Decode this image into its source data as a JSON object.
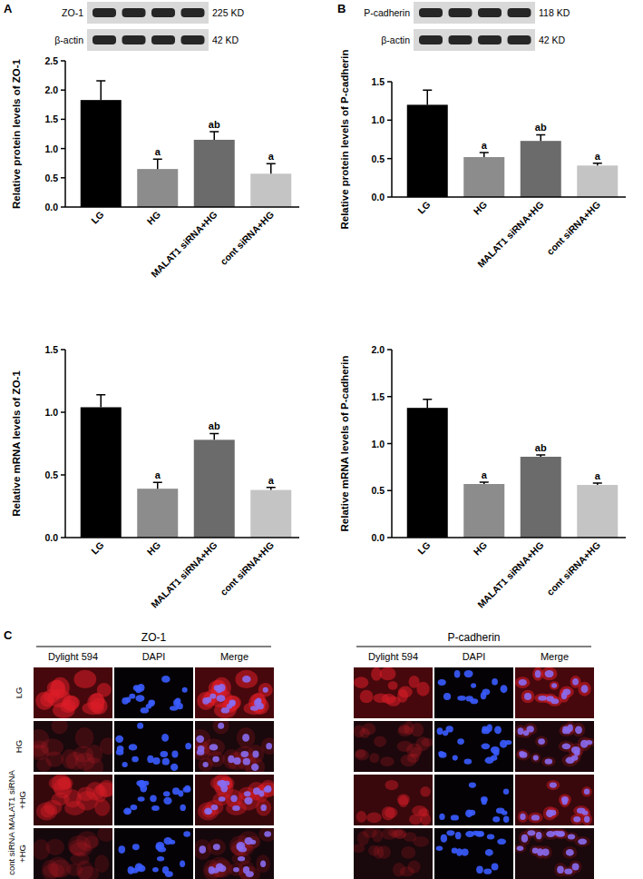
{
  "panel_labels": [
    "A",
    "B",
    "C"
  ],
  "blots": [
    {
      "rows": [
        {
          "label": "ZO-1",
          "size": "225 KD"
        },
        {
          "label": "β-actin",
          "size": "42 KD"
        }
      ]
    },
    {
      "rows": [
        {
          "label": "P-cadherin",
          "size": "118 KD"
        },
        {
          "label": "β-actin",
          "size": "42 KD"
        }
      ]
    }
  ],
  "chart_data": [
    {
      "type": "bar",
      "ylabel": "Relative protein levels of ZO-1",
      "categories": [
        "LG",
        "HG",
        "MALAT1 siRNA+HG",
        "cont siRNA+HG"
      ],
      "values": [
        1.83,
        0.65,
        1.15,
        0.57
      ],
      "errors": [
        0.33,
        0.17,
        0.14,
        0.17
      ],
      "annotations": [
        null,
        "a",
        "ab",
        "a"
      ],
      "colors": [
        "#000000",
        "#8c8c8c",
        "#6b6b6b",
        "#c4c4c4"
      ],
      "ylim": [
        0,
        2.5
      ],
      "yticks": [
        {
          "value": 0,
          "label": "0.0"
        },
        0.5,
        {
          "value": 1,
          "label": "1.0"
        },
        1.5,
        {
          "value": 2,
          "label": "2.0"
        },
        2.5
      ]
    },
    {
      "type": "bar",
      "ylabel": "Relative mRNA levels of ZO-1",
      "categories": [
        "LG",
        "HG",
        "MALAT1 siRNA+HG",
        "cont siRNA+HG"
      ],
      "values": [
        1.04,
        0.39,
        0.78,
        0.38
      ],
      "errors": [
        0.1,
        0.05,
        0.05,
        0.02
      ],
      "annotations": [
        null,
        "a",
        "ab",
        "a"
      ],
      "colors": [
        "#000000",
        "#8c8c8c",
        "#6b6b6b",
        "#c4c4c4"
      ],
      "ylim": [
        0,
        1.5
      ],
      "yticks": [
        {
          "value": 0,
          "label": "0.0"
        },
        0.5,
        {
          "value": 1,
          "label": "1.0"
        },
        1.5
      ]
    },
    {
      "type": "bar",
      "ylabel": "Relative protein levels of P-cadherin",
      "categories": [
        "LG",
        "HG",
        "MALAT1 siRNA+HG",
        "cont siRNA+HG"
      ],
      "values": [
        1.2,
        0.52,
        0.73,
        0.41
      ],
      "errors": [
        0.19,
        0.06,
        0.08,
        0.03
      ],
      "annotations": [
        null,
        "a",
        "ab",
        "a"
      ],
      "colors": [
        "#000000",
        "#8c8c8c",
        "#6b6b6b",
        "#c4c4c4"
      ],
      "ylim": [
        0,
        1.5
      ],
      "yticks": [
        {
          "value": 0,
          "label": "0.0"
        },
        0.5,
        {
          "value": 1,
          "label": "1.0"
        },
        1.5
      ]
    },
    {
      "type": "bar",
      "ylabel": "Relative mRNA levels of P-cadherin",
      "categories": [
        "LG",
        "HG",
        "MALAT1 siRNA+HG",
        "cont siRNA+HG"
      ],
      "values": [
        1.38,
        0.57,
        0.86,
        0.56
      ],
      "errors": [
        0.09,
        0.02,
        0.02,
        0.02
      ],
      "annotations": [
        null,
        "a",
        "ab",
        "a"
      ],
      "colors": [
        "#000000",
        "#8c8c8c",
        "#6b6b6b",
        "#c4c4c4"
      ],
      "ylim": [
        0,
        2
      ],
      "yticks": [
        {
          "value": 0,
          "label": "0.0"
        },
        0.5,
        {
          "value": 1,
          "label": "1.0"
        },
        1.5,
        {
          "value": 2,
          "label": "2.0"
        }
      ]
    }
  ],
  "micrographs": {
    "groups": [
      "ZO-1",
      "P-cadherin"
    ],
    "channels": [
      "Dylight 594",
      "DAPI",
      "Merge"
    ],
    "rows": [
      [
        "LG"
      ],
      [
        "HG"
      ],
      [
        "MALAT1 siRNA",
        "+HG"
      ],
      [
        "cont siRNA",
        "+HG"
      ]
    ]
  }
}
